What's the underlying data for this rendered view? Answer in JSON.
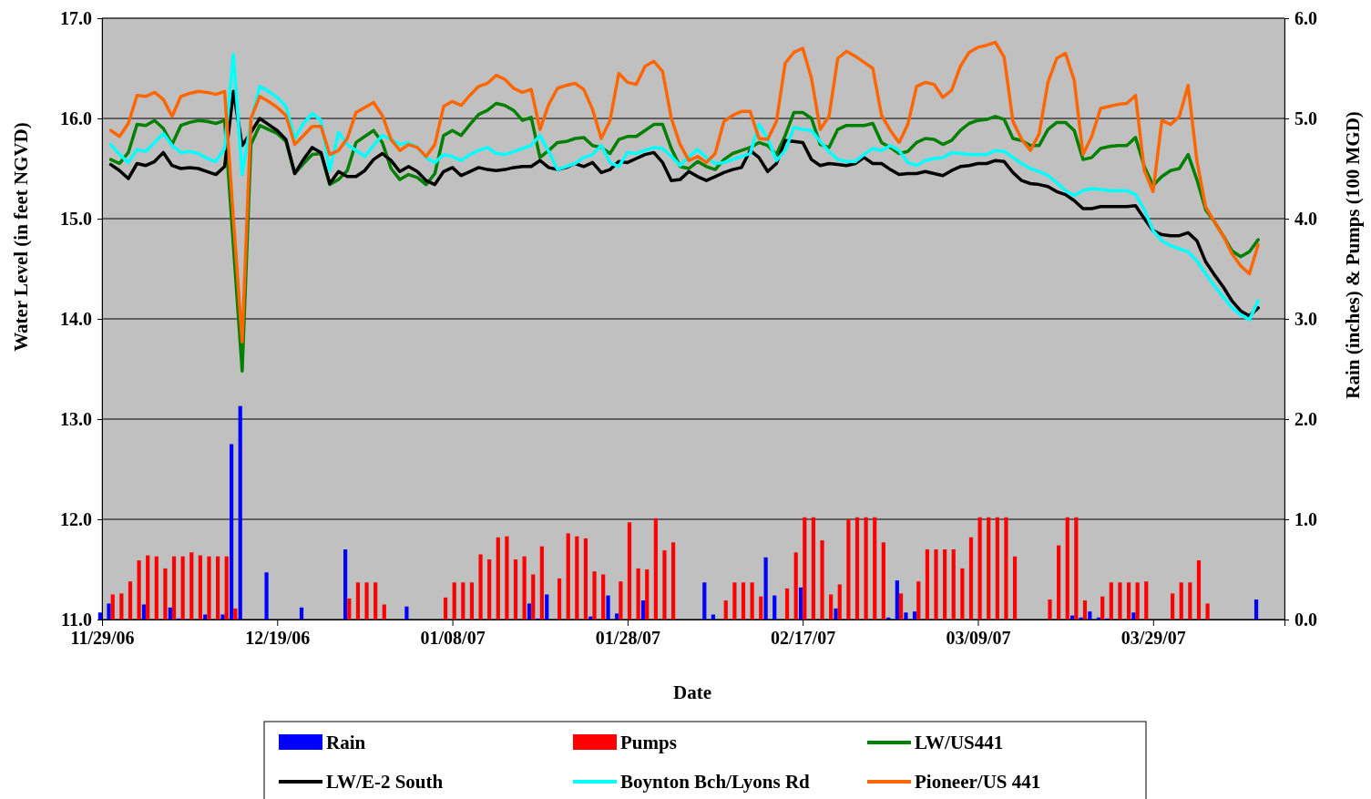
{
  "chart_data": {
    "type": "line",
    "xlabel": "Date",
    "ylabel": "Water Level (in feet NGVD)",
    "y2label": "Rain (inches) & Pumps (100 MGD)",
    "xlim": [
      "2006-11-29",
      "2007-04-13"
    ],
    "xticks": [
      {
        "value": "2006-11-29",
        "label": "11/29/06"
      },
      {
        "value": "2006-12-19",
        "label": "12/19/06"
      },
      {
        "value": "2007-01-08",
        "label": "01/08/07"
      },
      {
        "value": "2007-01-28",
        "label": "01/28/07"
      },
      {
        "value": "2007-02-17",
        "label": "02/17/07"
      },
      {
        "value": "2007-03-09",
        "label": "03/09/07"
      },
      {
        "value": "2007-03-29",
        "label": "03/29/07"
      }
    ],
    "ylim": [
      11,
      17
    ],
    "yticks": [
      {
        "value": 11,
        "label": "11.0"
      },
      {
        "value": 12,
        "label": "12.0"
      },
      {
        "value": 13,
        "label": "13.0"
      },
      {
        "value": 14,
        "label": "14.0"
      },
      {
        "value": 15,
        "label": "15.0"
      },
      {
        "value": 16,
        "label": "16.0"
      },
      {
        "value": 17,
        "label": "17.0"
      }
    ],
    "y2lim": [
      0,
      6
    ],
    "y2ticks": [
      {
        "value": 0,
        "label": "0.0"
      },
      {
        "value": 1,
        "label": "1.0"
      },
      {
        "value": 2,
        "label": "2.0"
      },
      {
        "value": 3,
        "label": "3.0"
      },
      {
        "value": 4,
        "label": "4.0"
      },
      {
        "value": 5,
        "label": "5.0"
      },
      {
        "value": 6,
        "label": "6.0"
      }
    ],
    "grid": "y",
    "legend": "bottom",
    "x": [
      "2006-11-30",
      "2006-12-01",
      "2006-12-02",
      "2006-12-03",
      "2006-12-04",
      "2006-12-05",
      "2006-12-06",
      "2006-12-07",
      "2006-12-08",
      "2006-12-09",
      "2006-12-10",
      "2006-12-11",
      "2006-12-12",
      "2006-12-13",
      "2006-12-14",
      "2006-12-15",
      "2006-12-16",
      "2006-12-17",
      "2006-12-18",
      "2006-12-19",
      "2006-12-20",
      "2006-12-21",
      "2006-12-22",
      "2006-12-23",
      "2006-12-24",
      "2006-12-25",
      "2006-12-26",
      "2006-12-27",
      "2006-12-28",
      "2006-12-29",
      "2006-12-30",
      "2006-12-31",
      "2007-01-01",
      "2007-01-02",
      "2007-01-03",
      "2007-01-04",
      "2007-01-05",
      "2007-01-06",
      "2007-01-07",
      "2007-01-08",
      "2007-01-09",
      "2007-01-10",
      "2007-01-11",
      "2007-01-12",
      "2007-01-13",
      "2007-01-14",
      "2007-01-15",
      "2007-01-16",
      "2007-01-17",
      "2007-01-18",
      "2007-01-19",
      "2007-01-20",
      "2007-01-21",
      "2007-01-22",
      "2007-01-23",
      "2007-01-24",
      "2007-01-25",
      "2007-01-26",
      "2007-01-27",
      "2007-01-28",
      "2007-01-29",
      "2007-01-30",
      "2007-01-31",
      "2007-02-01",
      "2007-02-02",
      "2007-02-03",
      "2007-02-04",
      "2007-02-05",
      "2007-02-06",
      "2007-02-07",
      "2007-02-08",
      "2007-02-09",
      "2007-02-10",
      "2007-02-11",
      "2007-02-12",
      "2007-02-13",
      "2007-02-14",
      "2007-02-15",
      "2007-02-16",
      "2007-02-17",
      "2007-02-18",
      "2007-02-19",
      "2007-02-20",
      "2007-02-21",
      "2007-02-22",
      "2007-02-23",
      "2007-02-24",
      "2007-02-25",
      "2007-02-26",
      "2007-02-27",
      "2007-02-28",
      "2007-03-01",
      "2007-03-02",
      "2007-03-03",
      "2007-03-04",
      "2007-03-05",
      "2007-03-06",
      "2007-03-07",
      "2007-03-08",
      "2007-03-09",
      "2007-03-10",
      "2007-03-11",
      "2007-03-12",
      "2007-03-13",
      "2007-03-14",
      "2007-03-15",
      "2007-03-16",
      "2007-03-17",
      "2007-03-18",
      "2007-03-19",
      "2007-03-20",
      "2007-03-21",
      "2007-03-22",
      "2007-03-23",
      "2007-03-24",
      "2007-03-25",
      "2007-03-26",
      "2007-03-27",
      "2007-03-28",
      "2007-03-29",
      "2007-03-30",
      "2007-03-31",
      "2007-04-01",
      "2007-04-02",
      "2007-04-03",
      "2007-04-04",
      "2007-04-05",
      "2007-04-06",
      "2007-04-07",
      "2007-04-08",
      "2007-04-09",
      "2007-04-10"
    ],
    "series": [
      {
        "name": "Rain",
        "type": "bar",
        "axis": "y2",
        "color": "#0000ff",
        "x": [
          "2006-11-29",
          "2006-11-30",
          "2006-12-04",
          "2006-12-07",
          "2006-12-08",
          "2006-12-11",
          "2006-12-13",
          "2006-12-14",
          "2006-12-15",
          "2006-12-18",
          "2006-12-22",
          "2006-12-27",
          "2007-01-03",
          "2007-01-17",
          "2007-01-18",
          "2007-01-19",
          "2007-01-24",
          "2007-01-26",
          "2007-01-27",
          "2007-01-30",
          "2007-02-06",
          "2007-02-07",
          "2007-02-13",
          "2007-02-14",
          "2007-02-17",
          "2007-02-21",
          "2007-02-27",
          "2007-02-28",
          "2007-03-01",
          "2007-03-02",
          "2007-03-20",
          "2007-03-21",
          "2007-03-22",
          "2007-03-23",
          "2007-03-24",
          "2007-03-27",
          "2007-04-10"
        ],
        "values": [
          0.07,
          0.16,
          0.15,
          0.12,
          0.01,
          0.05,
          0.05,
          1.75,
          2.13,
          0.47,
          0.12,
          0.7,
          0.13,
          0.16,
          0.01,
          0.25,
          0.03,
          0.24,
          0.06,
          0.19,
          0.37,
          0.05,
          0.62,
          0.24,
          0.32,
          0.11,
          0.02,
          0.39,
          0.07,
          0.08,
          0.04,
          0.02,
          0.08,
          0.02,
          0.01,
          0.07,
          0.2
        ]
      },
      {
        "name": "Pumps",
        "type": "bar",
        "axis": "y2",
        "color": "#ff0000",
        "x": [
          "2006-11-30",
          "2006-12-01",
          "2006-12-02",
          "2006-12-03",
          "2006-12-04",
          "2006-12-05",
          "2006-12-06",
          "2006-12-07",
          "2006-12-08",
          "2006-12-09",
          "2006-12-10",
          "2006-12-11",
          "2006-12-12",
          "2006-12-13",
          "2006-12-14",
          "2006-12-27",
          "2006-12-28",
          "2006-12-29",
          "2006-12-30",
          "2006-12-31",
          "2007-01-07",
          "2007-01-08",
          "2007-01-09",
          "2007-01-10",
          "2007-01-11",
          "2007-01-12",
          "2007-01-13",
          "2007-01-14",
          "2007-01-15",
          "2007-01-16",
          "2007-01-17",
          "2007-01-18",
          "2007-01-20",
          "2007-01-21",
          "2007-01-22",
          "2007-01-23",
          "2007-01-24",
          "2007-01-25",
          "2007-01-27",
          "2007-01-28",
          "2007-01-29",
          "2007-01-30",
          "2007-01-31",
          "2007-02-01",
          "2007-02-02",
          "2007-02-08",
          "2007-02-09",
          "2007-02-10",
          "2007-02-11",
          "2007-02-12",
          "2007-02-15",
          "2007-02-16",
          "2007-02-17",
          "2007-02-18",
          "2007-02-19",
          "2007-02-20",
          "2007-02-21",
          "2007-02-22",
          "2007-02-23",
          "2007-02-24",
          "2007-02-25",
          "2007-02-26",
          "2007-02-28",
          "2007-03-02",
          "2007-03-03",
          "2007-03-04",
          "2007-03-05",
          "2007-03-06",
          "2007-03-07",
          "2007-03-08",
          "2007-03-09",
          "2007-03-10",
          "2007-03-11",
          "2007-03-12",
          "2007-03-13",
          "2007-03-17",
          "2007-03-18",
          "2007-03-19",
          "2007-03-20",
          "2007-03-21",
          "2007-03-23",
          "2007-03-24",
          "2007-03-25",
          "2007-03-26",
          "2007-03-27",
          "2007-03-28",
          "2007-03-31",
          "2007-04-01",
          "2007-04-02",
          "2007-04-03",
          "2007-04-04"
        ],
        "values": [
          0.25,
          0.26,
          0.38,
          0.59,
          0.64,
          0.63,
          0.51,
          0.63,
          0.63,
          0.67,
          0.64,
          0.63,
          0.63,
          0.63,
          0.11,
          0.21,
          0.37,
          0.37,
          0.37,
          0.15,
          0.22,
          0.37,
          0.37,
          0.37,
          0.65,
          0.6,
          0.82,
          0.83,
          0.6,
          0.63,
          0.45,
          0.73,
          0.41,
          0.86,
          0.83,
          0.81,
          0.48,
          0.45,
          0.38,
          0.97,
          0.51,
          0.5,
          1.01,
          0.69,
          0.77,
          0.19,
          0.37,
          0.37,
          0.37,
          0.23,
          0.31,
          0.67,
          1.02,
          1.02,
          0.79,
          0.25,
          0.35,
          1.0,
          1.02,
          1.02,
          1.02,
          0.77,
          0.26,
          0.38,
          0.7,
          0.7,
          0.7,
          0.7,
          0.51,
          0.82,
          1.02,
          1.02,
          1.02,
          1.02,
          0.63,
          0.2,
          0.74,
          1.02,
          1.02,
          0.19,
          0.23,
          0.37,
          0.37,
          0.37,
          0.37,
          0.38,
          0.26,
          0.37,
          0.37,
          0.59,
          0.16
        ]
      },
      {
        "name": "LW/US441",
        "color": "#008000",
        "values": [
          15.59,
          15.55,
          15.66,
          15.94,
          15.93,
          15.98,
          15.9,
          15.74,
          15.93,
          15.96,
          15.98,
          15.97,
          15.95,
          15.98,
          14.73,
          13.48,
          15.74,
          15.93,
          15.89,
          15.85,
          15.77,
          15.45,
          15.55,
          15.64,
          15.65,
          15.34,
          15.39,
          15.48,
          15.76,
          15.82,
          15.88,
          15.76,
          15.5,
          15.39,
          15.44,
          15.41,
          15.34,
          15.45,
          15.83,
          15.88,
          15.83,
          15.94,
          16.04,
          16.08,
          16.15,
          16.13,
          16.08,
          15.98,
          16.01,
          15.61,
          15.68,
          15.76,
          15.77,
          15.8,
          15.81,
          15.73,
          15.71,
          15.65,
          15.79,
          15.82,
          15.82,
          15.88,
          15.94,
          15.94,
          15.7,
          15.52,
          15.5,
          15.57,
          15.52,
          15.49,
          15.59,
          15.65,
          15.68,
          15.71,
          15.76,
          15.73,
          15.64,
          15.83,
          16.06,
          16.06,
          16.0,
          15.74,
          15.71,
          15.89,
          15.93,
          15.93,
          15.93,
          15.95,
          15.76,
          15.71,
          15.65,
          15.67,
          15.76,
          15.8,
          15.79,
          15.74,
          15.78,
          15.88,
          15.95,
          15.98,
          15.99,
          16.02,
          15.99,
          15.8,
          15.78,
          15.73,
          15.73,
          15.89,
          15.96,
          15.96,
          15.88,
          15.59,
          15.61,
          15.7,
          15.72,
          15.73,
          15.73,
          15.81,
          15.52,
          15.33,
          15.42,
          15.48,
          15.5,
          15.64,
          15.39,
          15.09,
          14.97,
          14.83,
          14.68,
          14.62,
          14.67,
          14.79
        ]
      },
      {
        "name": "LW/E-2 South",
        "color": "#000000",
        "values": [
          15.54,
          15.48,
          15.4,
          15.55,
          15.53,
          15.57,
          15.66,
          15.53,
          15.5,
          15.51,
          15.5,
          15.47,
          15.44,
          15.52,
          16.27,
          15.73,
          15.86,
          16.0,
          15.94,
          15.88,
          15.79,
          15.45,
          15.59,
          15.71,
          15.66,
          15.35,
          15.47,
          15.42,
          15.42,
          15.48,
          15.59,
          15.65,
          15.58,
          15.47,
          15.52,
          15.47,
          15.38,
          15.34,
          15.47,
          15.51,
          15.43,
          15.47,
          15.51,
          15.49,
          15.48,
          15.49,
          15.51,
          15.52,
          15.52,
          15.58,
          15.51,
          15.49,
          15.51,
          15.55,
          15.52,
          15.56,
          15.46,
          15.49,
          15.57,
          15.56,
          15.6,
          15.64,
          15.66,
          15.56,
          15.38,
          15.39,
          15.47,
          15.42,
          15.38,
          15.42,
          15.46,
          15.49,
          15.51,
          15.68,
          15.61,
          15.47,
          15.55,
          15.78,
          15.77,
          15.76,
          15.59,
          15.53,
          15.55,
          15.54,
          15.53,
          15.55,
          15.61,
          15.55,
          15.55,
          15.49,
          15.44,
          15.45,
          15.45,
          15.47,
          15.45,
          15.43,
          15.48,
          15.52,
          15.53,
          15.55,
          15.55,
          15.58,
          15.57,
          15.46,
          15.38,
          15.35,
          15.34,
          15.32,
          15.27,
          15.24,
          15.18,
          15.1,
          15.1,
          15.12,
          15.12,
          15.12,
          15.12,
          15.13,
          15.0,
          14.88,
          14.84,
          14.83,
          14.83,
          14.86,
          14.78,
          14.57,
          14.44,
          14.32,
          14.18,
          14.08,
          14.03,
          14.11
        ]
      },
      {
        "name": "Boynton Bch/Lyons Rd",
        "color": "#00ffff",
        "values": [
          15.74,
          15.64,
          15.56,
          15.69,
          15.67,
          15.76,
          15.85,
          15.73,
          15.66,
          15.67,
          15.65,
          15.6,
          15.57,
          15.7,
          16.64,
          15.44,
          15.97,
          16.32,
          16.27,
          16.21,
          16.12,
          15.8,
          15.95,
          16.05,
          15.98,
          15.48,
          15.86,
          15.74,
          15.68,
          15.62,
          15.73,
          15.83,
          15.79,
          15.74,
          15.76,
          15.71,
          15.61,
          15.56,
          15.64,
          15.62,
          15.58,
          15.64,
          15.68,
          15.71,
          15.65,
          15.64,
          15.67,
          15.7,
          15.73,
          15.83,
          15.67,
          15.49,
          15.52,
          15.55,
          15.61,
          15.64,
          15.73,
          15.56,
          15.52,
          15.66,
          15.65,
          15.68,
          15.71,
          15.7,
          15.62,
          15.53,
          15.62,
          15.69,
          15.61,
          15.55,
          15.56,
          15.59,
          15.62,
          15.65,
          15.94,
          15.8,
          15.58,
          15.68,
          15.91,
          15.89,
          15.88,
          15.77,
          15.67,
          15.59,
          15.57,
          15.57,
          15.64,
          15.7,
          15.68,
          15.73,
          15.68,
          15.56,
          15.53,
          15.58,
          15.6,
          15.61,
          15.66,
          15.65,
          15.64,
          15.64,
          15.64,
          15.68,
          15.67,
          15.61,
          15.55,
          15.5,
          15.47,
          15.43,
          15.36,
          15.28,
          15.23,
          15.28,
          15.3,
          15.29,
          15.28,
          15.28,
          15.28,
          15.24,
          15.09,
          14.88,
          14.78,
          14.73,
          14.7,
          14.67,
          14.58,
          14.45,
          14.33,
          14.22,
          14.11,
          14.04,
          13.99,
          14.18
        ]
      },
      {
        "name": "Pioneer/US 441",
        "color": "#ff6600",
        "values": [
          15.88,
          15.82,
          15.95,
          16.23,
          16.22,
          16.26,
          16.19,
          16.02,
          16.22,
          16.25,
          16.27,
          16.26,
          16.24,
          16.27,
          15.0,
          13.77,
          16.0,
          16.22,
          16.17,
          16.11,
          16.03,
          15.74,
          15.83,
          15.92,
          15.92,
          15.64,
          15.68,
          15.8,
          16.06,
          16.11,
          16.16,
          16.03,
          15.79,
          15.68,
          15.74,
          15.71,
          15.62,
          15.74,
          16.12,
          16.17,
          16.13,
          16.23,
          16.32,
          16.35,
          16.43,
          16.39,
          16.3,
          16.26,
          16.29,
          15.89,
          16.14,
          16.3,
          16.33,
          16.35,
          16.29,
          16.09,
          15.8,
          15.98,
          16.45,
          16.36,
          16.34,
          16.52,
          16.57,
          16.47,
          16.0,
          15.74,
          15.58,
          15.62,
          15.56,
          15.65,
          15.97,
          16.03,
          16.07,
          16.07,
          15.8,
          15.79,
          15.97,
          16.55,
          16.66,
          16.7,
          16.4,
          15.89,
          16.02,
          16.6,
          16.67,
          16.62,
          16.56,
          16.5,
          16.03,
          15.88,
          15.76,
          15.94,
          16.32,
          16.36,
          16.34,
          16.21,
          16.28,
          16.52,
          16.66,
          16.71,
          16.73,
          16.76,
          16.61,
          15.97,
          15.79,
          15.68,
          15.85,
          16.36,
          16.6,
          16.65,
          16.38,
          15.64,
          15.82,
          16.1,
          16.12,
          16.14,
          16.15,
          16.23,
          15.48,
          15.27,
          15.98,
          15.94,
          16.02,
          16.33,
          15.58,
          15.12,
          14.97,
          14.83,
          14.65,
          14.53,
          14.45,
          14.74
        ]
      }
    ]
  }
}
